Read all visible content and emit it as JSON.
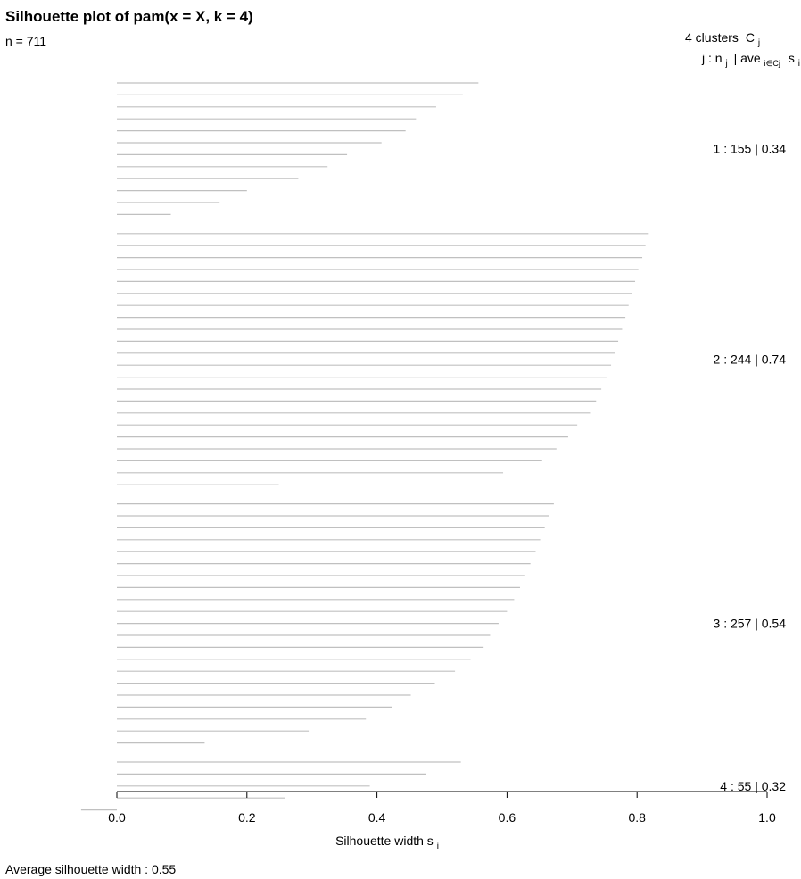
{
  "chart_data": {
    "type": "silhouette",
    "title": "Silhouette plot of pam(x = X, k = 4)",
    "n_label": "n = 711",
    "header": {
      "clusters_text": "4  clusters",
      "clusters_symbol": "C",
      "clusters_symbol_sub": "j",
      "col_text_j": "j :  n",
      "col_text_j_sub": "j",
      "col_text_ave": "| ave",
      "col_text_ave_sub": "i∈Cj",
      "col_text_s": "s",
      "col_text_s_sub": "i"
    },
    "clusters": [
      {
        "label": "1 :   155  |  0.34",
        "id": 1,
        "size": 155,
        "avg": 0.34,
        "widths": [
          0.556,
          0.532,
          0.491,
          0.46,
          0.444,
          0.407,
          0.354,
          0.324,
          0.279,
          0.2,
          0.158,
          0.083
        ]
      },
      {
        "label": "2 :   244  |  0.74",
        "id": 2,
        "size": 244,
        "avg": 0.74,
        "widths": [
          0.818,
          0.813,
          0.808,
          0.802,
          0.797,
          0.792,
          0.787,
          0.782,
          0.777,
          0.771,
          0.766,
          0.76,
          0.753,
          0.745,
          0.737,
          0.729,
          0.708,
          0.694,
          0.676,
          0.654,
          0.594,
          0.249
        ]
      },
      {
        "label": "3 :   257  |  0.54",
        "id": 3,
        "size": 257,
        "avg": 0.54,
        "widths": [
          0.672,
          0.665,
          0.658,
          0.651,
          0.644,
          0.636,
          0.628,
          0.62,
          0.611,
          0.6,
          0.587,
          0.574,
          0.564,
          0.544,
          0.52,
          0.489,
          0.452,
          0.423,
          0.383,
          0.295,
          0.135
        ]
      },
      {
        "label": "4 :   55  |  0.32",
        "id": 4,
        "size": 55,
        "avg": 0.32,
        "widths": [
          0.529,
          0.476,
          0.389,
          0.258,
          -0.055
        ]
      }
    ],
    "x_axis": {
      "label": "Silhouette width s",
      "label_sub": "i",
      "ticks": [
        0.0,
        0.2,
        0.4,
        0.6,
        0.8,
        1.0
      ],
      "tick_labels": [
        "0.0",
        "0.2",
        "0.4",
        "0.6",
        "0.8",
        "1.0"
      ],
      "xlim": [
        0.0,
        1.0
      ]
    },
    "average_text": "Average silhouette width :  0.55",
    "average": 0.55,
    "bar_color": "#c0c0c0"
  }
}
